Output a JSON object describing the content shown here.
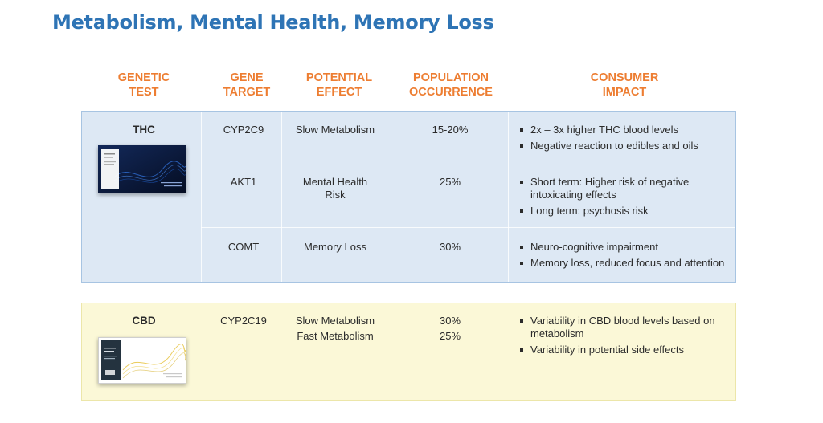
{
  "title": "Metabolism, Mental Health, Memory Loss",
  "headers": {
    "genetic_test": [
      "GENETIC",
      "TEST"
    ],
    "gene_target": [
      "GENE",
      "TARGET"
    ],
    "potential_effect": [
      "POTENTIAL",
      "EFFECT"
    ],
    "population_occurrence": [
      "POPULATION",
      "OCCURRENCE"
    ],
    "consumer_impact": [
      "CONSUMER",
      "IMPACT"
    ]
  },
  "thc": {
    "test": "THC",
    "rows": [
      {
        "gene": "CYP2C9",
        "effect": "Slow Metabolism",
        "occurrence": "15-20%",
        "impact": [
          "2x – 3x higher THC blood levels",
          "Negative reaction to edibles and oils"
        ]
      },
      {
        "gene": "AKT1",
        "effect": "Mental Health Risk",
        "occurrence": "25%",
        "impact": [
          "Short term: Higher risk of negative intoxicating effects",
          "Long term: psychosis risk"
        ]
      },
      {
        "gene": "COMT",
        "effect": "Memory Loss",
        "occurrence": "30%",
        "impact": [
          "Neuro-cognitive impairment",
          "Memory loss, reduced focus and attention"
        ]
      }
    ]
  },
  "cbd": {
    "test": "CBD",
    "gene": "CYP2C19",
    "effects": [
      "Slow Metabolism",
      "Fast Metabolism"
    ],
    "occurrences": [
      "30%",
      "25%"
    ],
    "impact": [
      "Variability in CBD blood levels based on metabolism",
      "Variability in potential side effects"
    ]
  },
  "colors": {
    "title": "#2e74b5",
    "header": "#ed7d31",
    "thc_panel": "#dde8f4",
    "cbd_panel": "#fbf8d7"
  },
  "icons": [
    "thc-test-kit-image",
    "cbd-test-kit-image"
  ]
}
